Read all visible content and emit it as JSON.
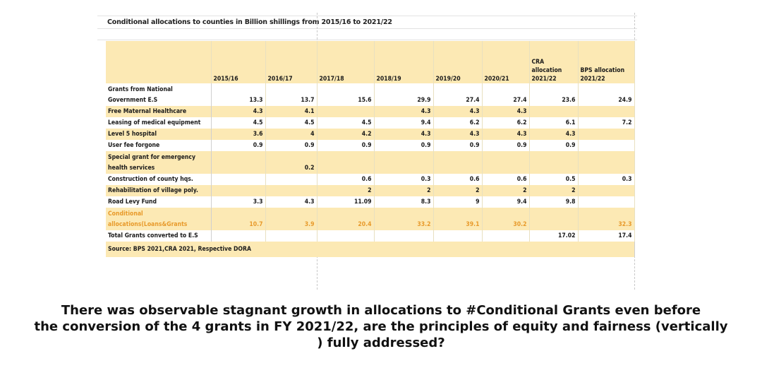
{
  "table": {
    "title": "Conditional allocations to counties in Billion shillings from 2015/16 to 2021/22",
    "header": {
      "row_label": "",
      "years": [
        "2015/16",
        "2016/17",
        "2017/18",
        "2018/19",
        "2019/20",
        "2020/21"
      ],
      "cra_line1": "CRA",
      "cra_line2": "allocation",
      "cra_line3": "2021/22",
      "bps_line1": "BPS allocation",
      "bps_line2": "2021/22"
    },
    "rows": [
      {
        "label1": "Grants from National",
        "label2": "Government E.S",
        "values": [
          "13.3",
          "13.7",
          "15.6",
          "29.9",
          "27.4",
          "27.4",
          "23.6",
          "24.9"
        ]
      },
      {
        "label1": "Free Maternal Healthcare",
        "label2": "",
        "values": [
          "4.3",
          "4.1",
          "",
          "4.3",
          "4.3",
          "4.3",
          "",
          ""
        ]
      },
      {
        "label1": "Leasing of medical equipment",
        "label2": "",
        "values": [
          "4.5",
          "4.5",
          "4.5",
          "9.4",
          "6.2",
          "6.2",
          "6.1",
          "7.2"
        ]
      },
      {
        "label1": "Level 5 hospital",
        "label2": "",
        "values": [
          "3.6",
          "4",
          "4.2",
          "4.3",
          "4.3",
          "4.3",
          "4.3",
          ""
        ]
      },
      {
        "label1": "User fee forgone",
        "label2": "",
        "values": [
          "0.9",
          "0.9",
          "0.9",
          "0.9",
          "0.9",
          "0.9",
          "0.9",
          ""
        ]
      },
      {
        "label1": "Special grant for emergency",
        "label2": "health services",
        "values": [
          "",
          "0.2",
          "",
          "",
          "",
          "",
          "",
          ""
        ]
      },
      {
        "label1": "Construction of county hqs.",
        "label2": "",
        "values": [
          "",
          "",
          "0.6",
          "0.3",
          "0.6",
          "0.6",
          "0.5",
          "0.3"
        ]
      },
      {
        "label1": "Rehabilitation of village poly.",
        "label2": "",
        "values": [
          "",
          "",
          "2",
          "2",
          "2",
          "2",
          "2",
          ""
        ]
      },
      {
        "label1": "Road Levy Fund",
        "label2": "",
        "values": [
          "3.3",
          "4.3",
          "11.09",
          "8.3",
          "9",
          "9.4",
          "9.8",
          ""
        ]
      },
      {
        "label1": "Conditional",
        "label2": "allocations(Loans&Grants",
        "values": [
          "10.7",
          "3.9",
          "20.4",
          "33.2",
          "39.1",
          "30.2",
          "",
          "32.3"
        ]
      },
      {
        "label1": "Total Grants converted to E.S",
        "label2": "",
        "values": [
          "",
          "",
          "",
          "",
          "",
          "",
          "17.02",
          "17.4"
        ]
      }
    ],
    "source": "Source: BPS 2021,CRA 2021, Respective DORA"
  },
  "caption": {
    "line1": "There was  observable stagnant growth in allocations to #Conditional Grants even before",
    "line2": "the conversion of the 4 grants in FY 2021/22, are the principles of equity and fairness (vertically",
    "line3": ") fully addressed?"
  },
  "colors": {
    "band": "#fce9b4",
    "highlight_text": "#e89a2b"
  }
}
